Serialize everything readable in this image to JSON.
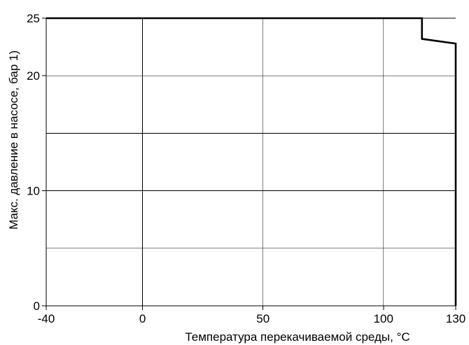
{
  "chart_data": {
    "type": "line",
    "title": "",
    "xlabel": "Температура перекачиваемой среды, °C",
    "ylabel": "Макс. давление в насосе, бар 1)",
    "xlim": [
      -40,
      130
    ],
    "ylim": [
      0,
      25
    ],
    "x_ticks": [
      {
        "value": -40,
        "label": "-40"
      },
      {
        "value": 0,
        "label": "0"
      },
      {
        "value": 50,
        "label": "50"
      },
      {
        "value": 100,
        "label": "100"
      },
      {
        "value": 130,
        "label": "130"
      }
    ],
    "y_ticks": [
      {
        "value": 0,
        "label": "0"
      },
      {
        "value": 10,
        "label": "10"
      },
      {
        "value": 20,
        "label": "20"
      },
      {
        "value": 25,
        "label": "25"
      }
    ],
    "x_grid": [
      0,
      50,
      100
    ],
    "y_grid": [
      5,
      10,
      15,
      20,
      25
    ],
    "grid": true,
    "legend": "none",
    "line_color": "#000000",
    "series": [
      {
        "points": [
          {
            "x": -40,
            "y": 25
          },
          {
            "x": 116,
            "y": 25
          },
          {
            "x": 116,
            "y": 23.2
          },
          {
            "x": 130,
            "y": 22.8
          },
          {
            "x": 130,
            "y": 0
          }
        ]
      }
    ]
  }
}
